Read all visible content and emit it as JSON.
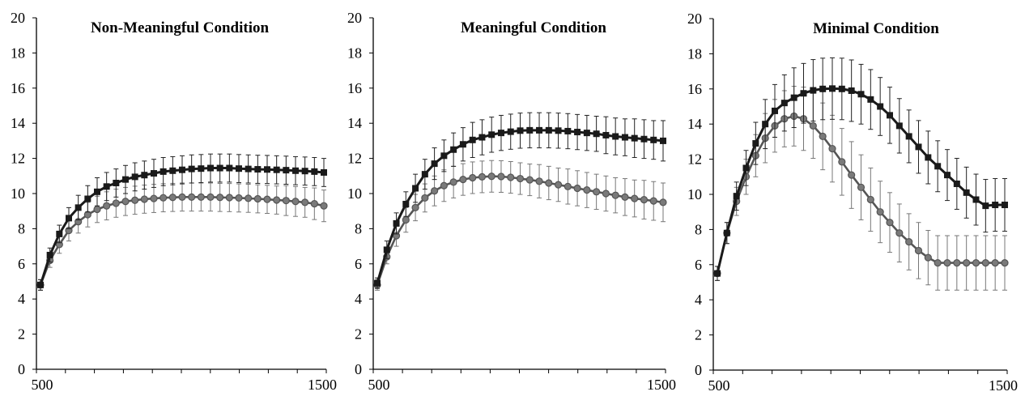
{
  "colors": {
    "series_square": "#1a1a1a",
    "series_circle": "#555555",
    "axis": "#000000",
    "error_bar_square": "#222222",
    "error_bar_circle": "#777777"
  },
  "chart_data": [
    {
      "type": "line",
      "title": "Non-Meaningful Condition",
      "xlabel": "",
      "ylabel": "",
      "xlim": [
        500,
        1500
      ],
      "ylim": [
        0,
        20
      ],
      "y_ticks": [
        "0",
        "2",
        "4",
        "6",
        "8",
        "10",
        "12",
        "14",
        "16",
        "18",
        "20"
      ],
      "x_tick_labels": [
        "500",
        "1500"
      ],
      "grid": false,
      "x": [
        500,
        525,
        550,
        575,
        600,
        625,
        650,
        675,
        700,
        725,
        750,
        775,
        800,
        825,
        850,
        875,
        900,
        925,
        950,
        975,
        1000,
        1025,
        1050,
        1075,
        1100,
        1125,
        1150,
        1175,
        1200,
        1225,
        1250
      ],
      "series": [
        {
          "marker": "square",
          "values": [
            4.8,
            6.5,
            7.7,
            8.6,
            9.2,
            9.7,
            10.1,
            10.4,
            10.6,
            10.8,
            10.95,
            11.05,
            11.15,
            11.25,
            11.3,
            11.35,
            11.4,
            11.42,
            11.45,
            11.45,
            11.45,
            11.42,
            11.4,
            11.38,
            11.37,
            11.35,
            11.33,
            11.3,
            11.28,
            11.25,
            11.2
          ],
          "error": [
            0.3,
            0.4,
            0.5,
            0.6,
            0.7,
            0.75,
            0.8,
            0.8,
            0.8,
            0.8,
            0.8,
            0.8,
            0.8,
            0.8,
            0.8,
            0.8,
            0.8,
            0.8,
            0.8,
            0.8,
            0.8,
            0.8,
            0.8,
            0.8,
            0.8,
            0.8,
            0.8,
            0.8,
            0.8,
            0.8,
            0.8
          ]
        },
        {
          "marker": "circle",
          "values": [
            4.8,
            6.2,
            7.1,
            7.9,
            8.4,
            8.8,
            9.1,
            9.3,
            9.45,
            9.55,
            9.62,
            9.68,
            9.72,
            9.76,
            9.78,
            9.8,
            9.8,
            9.8,
            9.8,
            9.78,
            9.77,
            9.75,
            9.73,
            9.7,
            9.67,
            9.63,
            9.6,
            9.55,
            9.5,
            9.42,
            9.3
          ],
          "error": [
            0.3,
            0.4,
            0.5,
            0.6,
            0.65,
            0.7,
            0.75,
            0.8,
            0.8,
            0.8,
            0.8,
            0.8,
            0.8,
            0.8,
            0.8,
            0.8,
            0.8,
            0.8,
            0.8,
            0.8,
            0.8,
            0.8,
            0.8,
            0.8,
            0.8,
            0.8,
            0.85,
            0.85,
            0.85,
            0.9,
            0.9
          ]
        }
      ]
    },
    {
      "type": "line",
      "title": "Meaningful Condition",
      "xlabel": "",
      "ylabel": "",
      "xlim": [
        500,
        1500
      ],
      "ylim": [
        0,
        20
      ],
      "y_ticks": [
        "0",
        "2",
        "4",
        "6",
        "8",
        "10",
        "12",
        "14",
        "16",
        "18",
        "20"
      ],
      "x_tick_labels": [
        "500",
        "1500"
      ],
      "grid": false,
      "x": [
        500,
        525,
        550,
        575,
        600,
        625,
        650,
        675,
        700,
        725,
        750,
        775,
        800,
        825,
        850,
        875,
        900,
        925,
        950,
        975,
        1000,
        1025,
        1050,
        1075,
        1100,
        1125,
        1150,
        1175,
        1200,
        1225,
        1250
      ],
      "series": [
        {
          "marker": "square",
          "values": [
            4.9,
            6.8,
            8.3,
            9.4,
            10.3,
            11.1,
            11.7,
            12.15,
            12.5,
            12.8,
            13.05,
            13.2,
            13.35,
            13.45,
            13.52,
            13.58,
            13.6,
            13.6,
            13.6,
            13.58,
            13.55,
            13.5,
            13.45,
            13.4,
            13.32,
            13.25,
            13.2,
            13.15,
            13.1,
            13.05,
            13.0
          ],
          "error": [
            0.3,
            0.5,
            0.6,
            0.7,
            0.8,
            0.85,
            0.9,
            0.9,
            0.95,
            0.95,
            1.0,
            1.0,
            1.0,
            1.0,
            1.0,
            1.0,
            1.0,
            1.0,
            1.0,
            1.0,
            1.0,
            1.0,
            1.0,
            1.0,
            1.05,
            1.05,
            1.05,
            1.1,
            1.1,
            1.1,
            1.15
          ]
        },
        {
          "marker": "circle",
          "values": [
            4.8,
            6.4,
            7.6,
            8.5,
            9.2,
            9.75,
            10.15,
            10.45,
            10.65,
            10.8,
            10.9,
            10.95,
            10.98,
            10.97,
            10.92,
            10.85,
            10.78,
            10.7,
            10.6,
            10.5,
            10.4,
            10.3,
            10.2,
            10.1,
            10.0,
            9.9,
            9.8,
            9.72,
            9.65,
            9.58,
            9.5
          ],
          "error": [
            0.3,
            0.4,
            0.6,
            0.7,
            0.75,
            0.8,
            0.85,
            0.9,
            0.9,
            0.9,
            0.9,
            0.9,
            0.9,
            0.9,
            0.9,
            0.9,
            0.9,
            0.95,
            0.95,
            0.95,
            1.0,
            1.0,
            1.0,
            1.0,
            1.0,
            1.0,
            1.05,
            1.05,
            1.1,
            1.1,
            1.1
          ]
        }
      ]
    },
    {
      "type": "line",
      "title": "Minimal Condition",
      "xlabel": "",
      "ylabel": "",
      "xlim": [
        500,
        1500
      ],
      "ylim": [
        0,
        20
      ],
      "y_ticks": [
        "0",
        "2",
        "4",
        "6",
        "8",
        "10",
        "12",
        "14",
        "16",
        "18",
        "20"
      ],
      "x_tick_labels": [
        "500",
        "1500"
      ],
      "grid": false,
      "x": [
        500,
        525,
        550,
        575,
        600,
        625,
        650,
        675,
        700,
        725,
        750,
        775,
        800,
        825,
        850,
        875,
        900,
        925,
        950,
        975,
        1000,
        1025,
        1050,
        1075,
        1100,
        1125,
        1150,
        1175,
        1200,
        1225,
        1250
      ],
      "series": [
        {
          "marker": "square",
          "values": [
            5.5,
            7.8,
            9.9,
            11.5,
            12.9,
            14.0,
            14.75,
            15.2,
            15.5,
            15.75,
            15.92,
            16.0,
            16.02,
            16.0,
            15.9,
            15.7,
            15.4,
            15.0,
            14.5,
            13.9,
            13.3,
            12.7,
            12.1,
            11.6,
            11.1,
            10.6,
            10.1,
            9.7,
            9.35,
            9.4,
            9.4
          ],
          "error": [
            0.4,
            0.6,
            0.8,
            1.0,
            1.2,
            1.4,
            1.5,
            1.6,
            1.7,
            1.7,
            1.75,
            1.75,
            1.75,
            1.75,
            1.75,
            1.7,
            1.7,
            1.65,
            1.6,
            1.55,
            1.5,
            1.5,
            1.5,
            1.45,
            1.45,
            1.45,
            1.45,
            1.45,
            1.5,
            1.5,
            1.5
          ]
        },
        {
          "marker": "circle",
          "values": [
            5.5,
            7.8,
            9.6,
            11.0,
            12.2,
            13.2,
            13.9,
            14.3,
            14.45,
            14.3,
            13.9,
            13.3,
            12.6,
            11.85,
            11.1,
            10.4,
            9.7,
            9.0,
            8.4,
            7.8,
            7.3,
            6.8,
            6.4,
            6.1,
            6.1,
            6.1,
            6.1,
            6.1,
            6.1,
            6.1,
            6.1
          ],
          "error": [
            0.4,
            0.6,
            0.8,
            1.0,
            1.2,
            1.4,
            1.5,
            1.6,
            1.7,
            1.8,
            1.85,
            1.9,
            1.9,
            1.9,
            1.9,
            1.85,
            1.8,
            1.75,
            1.7,
            1.65,
            1.6,
            1.6,
            1.55,
            1.55,
            1.55,
            1.55,
            1.55,
            1.55,
            1.55,
            1.55,
            1.55
          ]
        }
      ]
    }
  ]
}
